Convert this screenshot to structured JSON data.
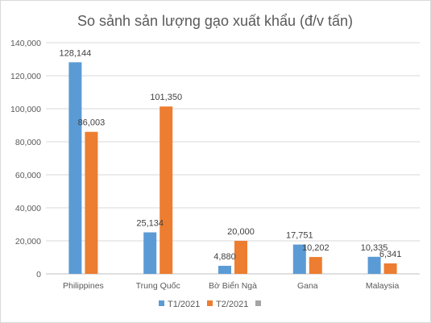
{
  "chart_data": {
    "type": "bar",
    "title": "So sảnh sản lượng gạo xuất khẩu (đ/v tấn)",
    "categories": [
      "Philippines",
      "Trung Quốc",
      "Bờ Biển Ngà",
      "Gana",
      "Malaysia"
    ],
    "series": [
      {
        "name": "T1/2021",
        "color": "#5b9bd5",
        "values": [
          128144,
          25134,
          4880,
          17751,
          10335
        ],
        "labels": [
          "128,144",
          "25,134",
          "4,880",
          "17,751",
          "10,335"
        ]
      },
      {
        "name": "T2/2021",
        "color": "#ed7d31",
        "values": [
          86003,
          101350,
          20000,
          10202,
          6341
        ],
        "labels": [
          "86,003",
          "101,350",
          "20,000",
          "10,202",
          "6,341"
        ]
      }
    ],
    "legend_extra_swatch_color": "#a5a5a5",
    "ylim": [
      0,
      140000
    ],
    "yticks": [
      0,
      20000,
      40000,
      60000,
      80000,
      100000,
      120000,
      140000
    ],
    "ytick_labels": [
      "0",
      "20,000",
      "40,000",
      "60,000",
      "80,000",
      "100,000",
      "120,000",
      "140,000"
    ],
    "xlabel": "",
    "ylabel": "",
    "grid": true,
    "legend_position": "bottom"
  }
}
